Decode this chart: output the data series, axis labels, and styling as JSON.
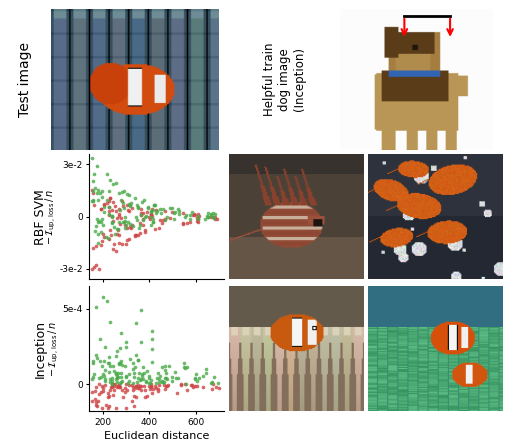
{
  "scatter_green": "#4aaa4a",
  "scatter_red": "#cc4444",
  "bg_color": "#ffffff",
  "row1_label": "RBF SVM",
  "row2_label": "Inception",
  "xlabel": "Euclidean distance",
  "svm_yticks": [
    -0.03,
    0,
    0.03
  ],
  "svm_ytick_labels": [
    "-3e-2",
    "0",
    "3e-2"
  ],
  "inc_ytick_top": "5e-4",
  "inc_ytick_zero": "0",
  "xticks": [
    200,
    400,
    600
  ],
  "xlim": [
    140,
    720
  ],
  "svm_ylim": [
    -0.036,
    0.036
  ],
  "inc_ylim": [
    -0.00018,
    0.00065
  ],
  "test_image_label": "Test image",
  "dog_label": "Helpful train\ndog image\n(Inception)",
  "annotation_color_red": "#dd0000",
  "annotation_color_black": "#000000"
}
